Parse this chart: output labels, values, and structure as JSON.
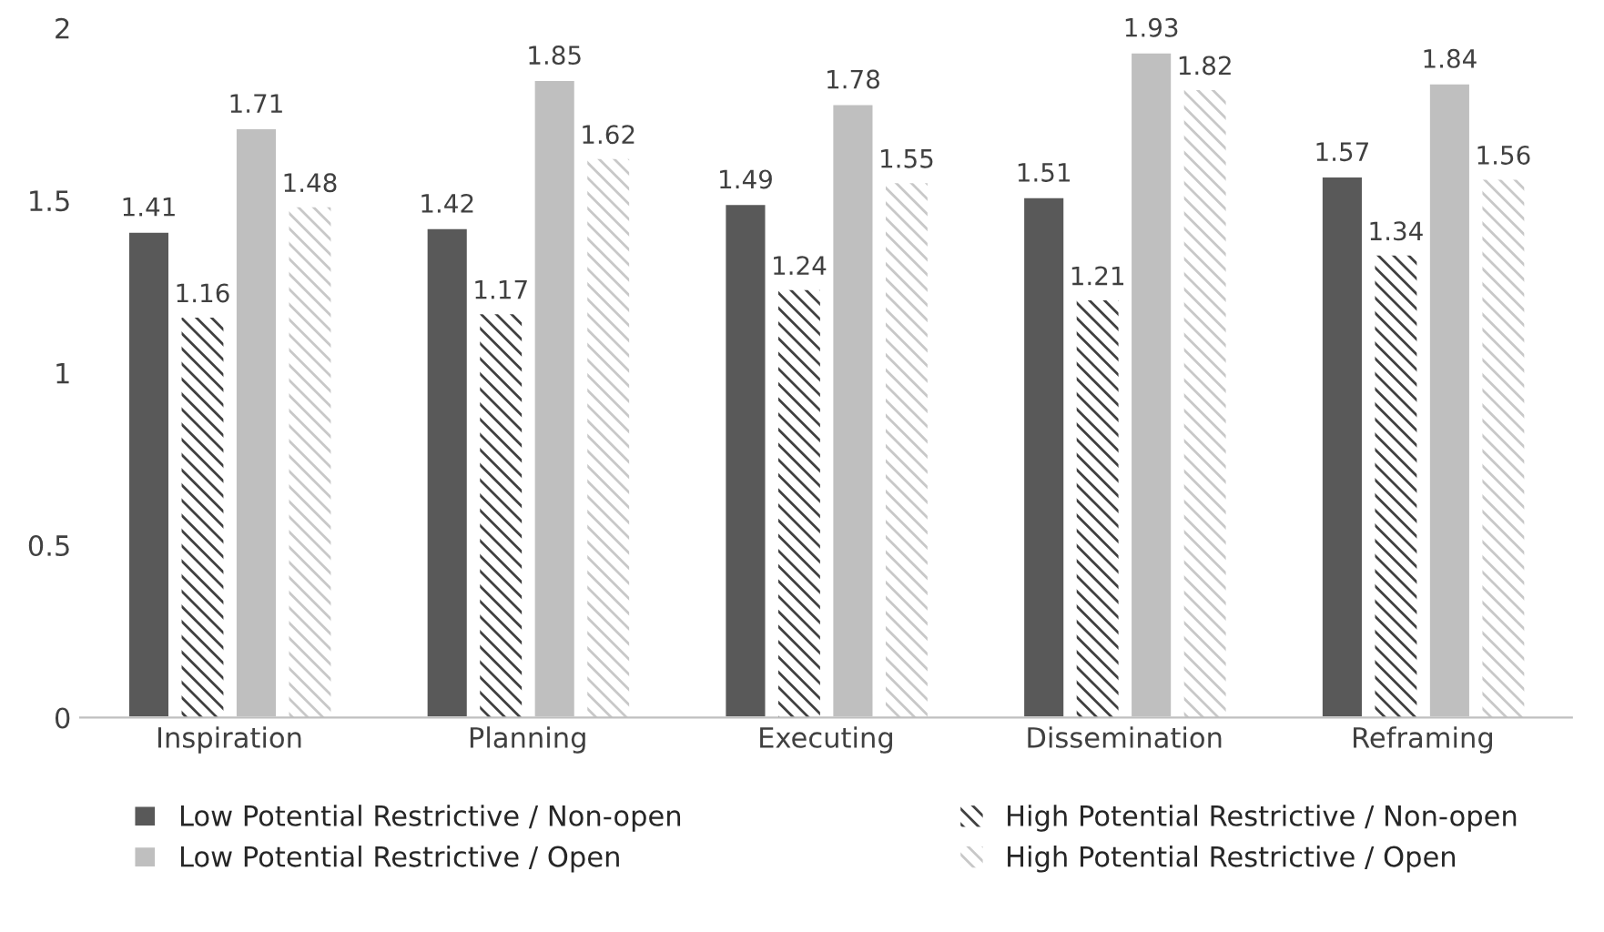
{
  "chart_data": {
    "type": "bar",
    "categories": [
      "Inspiration",
      "Planning",
      "Executing",
      "Dissemination",
      "Reframing"
    ],
    "series": [
      {
        "name": "Low Potential Restrictive / Non-open",
        "color": "#595959",
        "values": [
          1.41,
          1.42,
          1.49,
          1.51,
          1.57
        ]
      },
      {
        "name": "High Potential Restrictive / Non-open",
        "color": "#404040",
        "values": [
          1.16,
          1.17,
          1.24,
          1.21,
          1.34
        ]
      },
      {
        "name": "Low Potential Restrictive / Open",
        "color": "#bfbfbf",
        "values": [
          1.71,
          1.85,
          1.78,
          1.93,
          1.84
        ]
      },
      {
        "name": "High Potential Restrictive / Open",
        "color": "#c8c8c8",
        "values": [
          1.48,
          1.62,
          1.55,
          1.82,
          1.56
        ]
      }
    ],
    "ylim": [
      0,
      2
    ],
    "yticks": [
      0,
      0.5,
      1,
      1.5,
      2
    ],
    "grid": false,
    "legend": "bottom",
    "data_labels": true
  }
}
